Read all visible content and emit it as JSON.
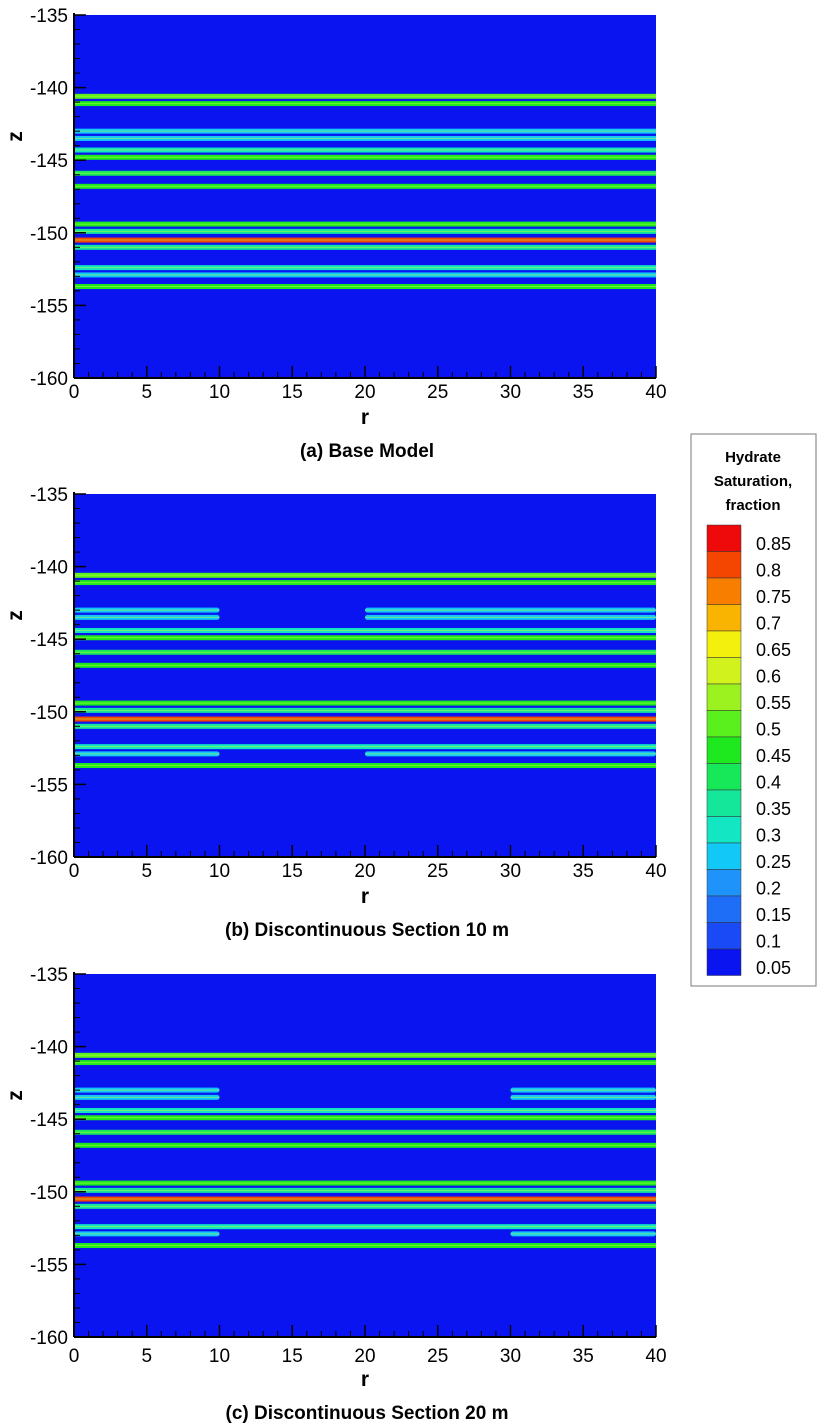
{
  "colors": {
    "background": "#0a14f0",
    "scale": [
      "#0a14f0",
      "#1a4af5",
      "#1e6ef8",
      "#1e94fa",
      "#12c8f6",
      "#12e6c2",
      "#14e69a",
      "#16e85a",
      "#1ee81e",
      "#5af01e",
      "#9cf21e",
      "#d2f21e",
      "#f4f00e",
      "#f8b400",
      "#f87e00",
      "#f44600",
      "#ee0a0a"
    ]
  },
  "legend": {
    "title_lines": [
      "Hydrate",
      "Saturation,",
      "fraction"
    ],
    "levels": [
      "0.85",
      "0.8",
      "0.75",
      "0.7",
      "0.65",
      "0.6",
      "0.55",
      "0.5",
      "0.45",
      "0.4",
      "0.35",
      "0.3",
      "0.25",
      "0.2",
      "0.15",
      "0.1",
      "0.05"
    ]
  },
  "chart_data": [
    {
      "type": "heatmap",
      "caption": "(a) Base Model",
      "xlabel": "r",
      "ylabel": "z",
      "xlim": [
        0,
        40
      ],
      "ylim": [
        -160,
        -135
      ],
      "xticks": [
        "0",
        "5",
        "10",
        "15",
        "20",
        "25",
        "30",
        "35",
        "40"
      ],
      "yticks": [
        "-135",
        "-140",
        "-145",
        "-150",
        "-155",
        "-160"
      ],
      "layers": [
        {
          "z": -140.6,
          "value": 0.5,
          "segments": [
            [
              0,
              40
            ]
          ]
        },
        {
          "z": -141.1,
          "value": 0.45,
          "segments": [
            [
              0,
              40
            ]
          ]
        },
        {
          "z": -143.0,
          "value": 0.25,
          "segments": [
            [
              0,
              40
            ]
          ]
        },
        {
          "z": -143.5,
          "value": 0.25,
          "segments": [
            [
              0,
              40
            ]
          ]
        },
        {
          "z": -144.3,
          "value": 0.3,
          "segments": [
            [
              0,
              40
            ]
          ]
        },
        {
          "z": -144.8,
          "value": 0.45,
          "segments": [
            [
              0,
              40
            ]
          ]
        },
        {
          "z": -145.9,
          "value": 0.4,
          "segments": [
            [
              0,
              40
            ]
          ]
        },
        {
          "z": -146.8,
          "value": 0.45,
          "segments": [
            [
              0,
              40
            ]
          ]
        },
        {
          "z": -149.4,
          "value": 0.45,
          "segments": [
            [
              0,
              40
            ]
          ]
        },
        {
          "z": -149.9,
          "value": 0.35,
          "segments": [
            [
              0,
              40
            ]
          ]
        },
        {
          "z": -150.5,
          "value": 0.8,
          "segments": [
            [
              0,
              40
            ]
          ]
        },
        {
          "z": -151.0,
          "value": 0.35,
          "segments": [
            [
              0,
              40
            ]
          ]
        },
        {
          "z": -152.4,
          "value": 0.3,
          "segments": [
            [
              0,
              40
            ]
          ]
        },
        {
          "z": -152.9,
          "value": 0.25,
          "segments": [
            [
              0,
              40
            ]
          ]
        },
        {
          "z": -153.7,
          "value": 0.45,
          "segments": [
            [
              0,
              40
            ]
          ]
        }
      ]
    },
    {
      "type": "heatmap",
      "caption": "(b) Discontinuous Section 10 m",
      "xlabel": "r",
      "ylabel": "z",
      "xlim": [
        0,
        40
      ],
      "ylim": [
        -160,
        -135
      ],
      "xticks": [
        "0",
        "5",
        "10",
        "15",
        "20",
        "25",
        "30",
        "35",
        "40"
      ],
      "yticks": [
        "-135",
        "-140",
        "-145",
        "-150",
        "-155",
        "-160"
      ],
      "layers": [
        {
          "z": -140.6,
          "value": 0.5,
          "segments": [
            [
              0,
              40
            ]
          ]
        },
        {
          "z": -141.1,
          "value": 0.45,
          "segments": [
            [
              0,
              40
            ]
          ]
        },
        {
          "z": -143.0,
          "value": 0.25,
          "segments": [
            [
              0,
              10
            ],
            [
              20,
              40
            ]
          ]
        },
        {
          "z": -143.5,
          "value": 0.25,
          "segments": [
            [
              0,
              10
            ],
            [
              20,
              40
            ]
          ]
        },
        {
          "z": -144.4,
          "value": 0.3,
          "segments": [
            [
              0,
              40
            ]
          ]
        },
        {
          "z": -144.9,
          "value": 0.45,
          "segments": [
            [
              0,
              40
            ]
          ]
        },
        {
          "z": -145.9,
          "value": 0.4,
          "segments": [
            [
              0,
              40
            ]
          ]
        },
        {
          "z": -146.8,
          "value": 0.45,
          "segments": [
            [
              0,
              40
            ]
          ]
        },
        {
          "z": -149.4,
          "value": 0.45,
          "segments": [
            [
              0,
              40
            ]
          ]
        },
        {
          "z": -149.9,
          "value": 0.35,
          "segments": [
            [
              0,
              40
            ]
          ]
        },
        {
          "z": -150.5,
          "value": 0.8,
          "segments": [
            [
              0,
              40
            ]
          ]
        },
        {
          "z": -151.0,
          "value": 0.35,
          "segments": [
            [
              0,
              40
            ]
          ]
        },
        {
          "z": -152.4,
          "value": 0.3,
          "segments": [
            [
              0,
              40
            ]
          ]
        },
        {
          "z": -152.9,
          "value": 0.25,
          "segments": [
            [
              0,
              10
            ],
            [
              20,
              40
            ]
          ]
        },
        {
          "z": -153.7,
          "value": 0.45,
          "segments": [
            [
              0,
              40
            ]
          ]
        }
      ]
    },
    {
      "type": "heatmap",
      "caption": "(c) Discontinuous Section 20 m",
      "xlabel": "r",
      "ylabel": "z",
      "xlim": [
        0,
        40
      ],
      "ylim": [
        -160,
        -135
      ],
      "xticks": [
        "0",
        "5",
        "10",
        "15",
        "20",
        "25",
        "30",
        "35",
        "40"
      ],
      "yticks": [
        "-135",
        "-140",
        "-145",
        "-150",
        "-155",
        "-160"
      ],
      "layers": [
        {
          "z": -140.6,
          "value": 0.5,
          "segments": [
            [
              0,
              40
            ]
          ]
        },
        {
          "z": -141.1,
          "value": 0.45,
          "segments": [
            [
              0,
              40
            ]
          ]
        },
        {
          "z": -143.0,
          "value": 0.25,
          "segments": [
            [
              0,
              10
            ],
            [
              30,
              40
            ]
          ]
        },
        {
          "z": -143.5,
          "value": 0.25,
          "segments": [
            [
              0,
              10
            ],
            [
              30,
              40
            ]
          ]
        },
        {
          "z": -144.4,
          "value": 0.3,
          "segments": [
            [
              0,
              40
            ]
          ]
        },
        {
          "z": -144.9,
          "value": 0.45,
          "segments": [
            [
              0,
              40
            ]
          ]
        },
        {
          "z": -145.9,
          "value": 0.4,
          "segments": [
            [
              0,
              40
            ]
          ]
        },
        {
          "z": -146.8,
          "value": 0.45,
          "segments": [
            [
              0,
              40
            ]
          ]
        },
        {
          "z": -149.4,
          "value": 0.45,
          "segments": [
            [
              0,
              40
            ]
          ]
        },
        {
          "z": -149.9,
          "value": 0.35,
          "segments": [
            [
              0,
              40
            ]
          ]
        },
        {
          "z": -150.5,
          "value": 0.8,
          "segments": [
            [
              0,
              40
            ]
          ]
        },
        {
          "z": -151.0,
          "value": 0.35,
          "segments": [
            [
              0,
              40
            ]
          ]
        },
        {
          "z": -152.4,
          "value": 0.3,
          "segments": [
            [
              0,
              40
            ]
          ]
        },
        {
          "z": -152.9,
          "value": 0.25,
          "segments": [
            [
              0,
              10
            ],
            [
              30,
              40
            ]
          ]
        },
        {
          "z": -153.7,
          "value": 0.45,
          "segments": [
            [
              0,
              40
            ]
          ]
        }
      ]
    }
  ]
}
